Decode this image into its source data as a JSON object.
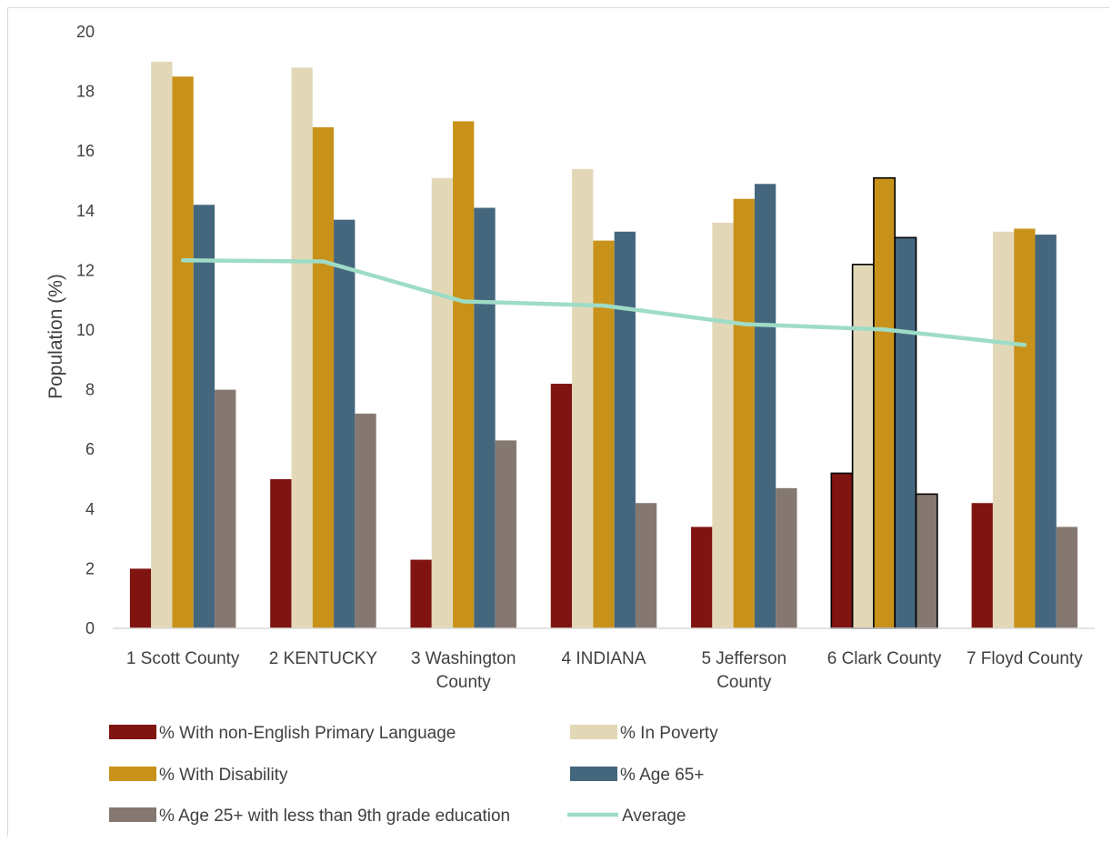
{
  "chart_data": {
    "type": "bar",
    "title": "",
    "xlabel": "",
    "ylabel": "Population (%)",
    "ylim": [
      0,
      20
    ],
    "yticks": [
      0,
      2,
      4,
      6,
      8,
      10,
      12,
      14,
      16,
      18,
      20
    ],
    "grid": false,
    "legend_position": "bottom",
    "categories": [
      [
        "1 Scott County"
      ],
      [
        "2 KENTUCKY"
      ],
      [
        "3 Washington",
        "County"
      ],
      [
        "4 INDIANA"
      ],
      [
        "5 Jefferson",
        "County"
      ],
      [
        "6 Clark County"
      ],
      [
        "7 Floyd County"
      ]
    ],
    "highlighted_category": 5,
    "series": [
      {
        "name": "% With non-English Primary Language",
        "type": "bar",
        "color": "#7f1410",
        "values": [
          2.0,
          5.0,
          2.3,
          8.2,
          3.4,
          5.2,
          4.2
        ]
      },
      {
        "name": "% In Poverty",
        "type": "bar",
        "color": "#e2d8b8",
        "values": [
          19.0,
          18.8,
          15.1,
          15.4,
          13.6,
          12.2,
          13.3
        ]
      },
      {
        "name": "% With Disability",
        "type": "bar",
        "color": "#c8921a",
        "values": [
          18.5,
          16.8,
          17.0,
          13.0,
          14.4,
          15.1,
          13.4
        ]
      },
      {
        "name": "% Age 65+",
        "type": "bar",
        "color": "#44677e",
        "values": [
          14.2,
          13.7,
          14.1,
          13.3,
          14.9,
          13.1,
          13.2
        ]
      },
      {
        "name": "% Age 25+ with less than 9th grade education",
        "type": "bar",
        "color": "#857870",
        "values": [
          8.0,
          7.2,
          6.3,
          4.2,
          4.7,
          4.5,
          3.4
        ]
      },
      {
        "name": "Average",
        "type": "line",
        "color": "#9edcc6",
        "values": [
          12.34,
          12.3,
          10.96,
          10.82,
          10.2,
          10.02,
          9.5
        ]
      }
    ]
  }
}
